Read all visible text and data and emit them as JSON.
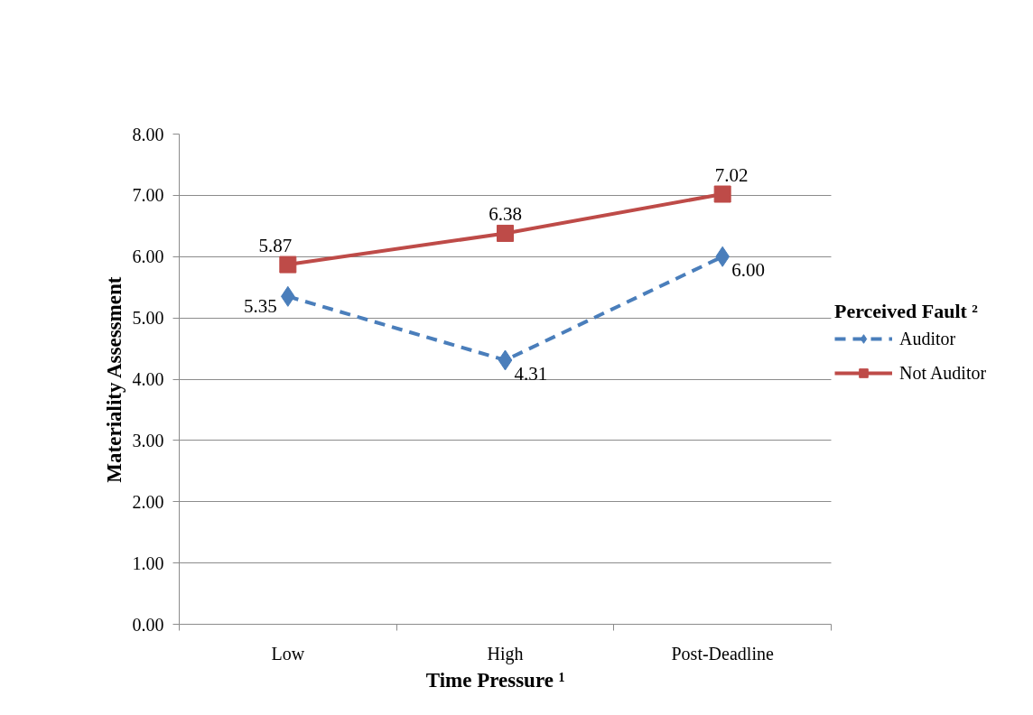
{
  "chart_data": {
    "type": "line",
    "categories": [
      "Low",
      "High",
      "Post-Deadline"
    ],
    "xlabel": "Time Pressure ¹",
    "ylabel": "Materiality Assessment",
    "legend_title": "Perceived Fault ²",
    "ylim": [
      0,
      8
    ],
    "yticks": [
      {
        "value": 0,
        "label": "0.00"
      },
      {
        "value": 1,
        "label": "1.00"
      },
      {
        "value": 2,
        "label": "2.00"
      },
      {
        "value": 3,
        "label": "3.00"
      },
      {
        "value": 4,
        "label": "4.00"
      },
      {
        "value": 5,
        "label": "5.00"
      },
      {
        "value": 6,
        "label": "6.00"
      },
      {
        "value": 7,
        "label": "7.00"
      },
      {
        "value": 8,
        "label": "8.00"
      }
    ],
    "grid": "y",
    "legend": "right",
    "series": [
      {
        "name": "Auditor",
        "color": "#4a7ebb",
        "values": [
          5.35,
          4.31,
          6.0
        ],
        "value_labels": [
          "5.35",
          "4.31",
          "6.00"
        ],
        "marker": "diamond",
        "line_style": "dashed"
      },
      {
        "name": "Not Auditor",
        "color": "#be4b48",
        "values": [
          5.87,
          6.38,
          7.02
        ],
        "value_labels": [
          "5.87",
          "6.38",
          "7.02"
        ],
        "marker": "square",
        "line_style": "solid"
      }
    ]
  }
}
